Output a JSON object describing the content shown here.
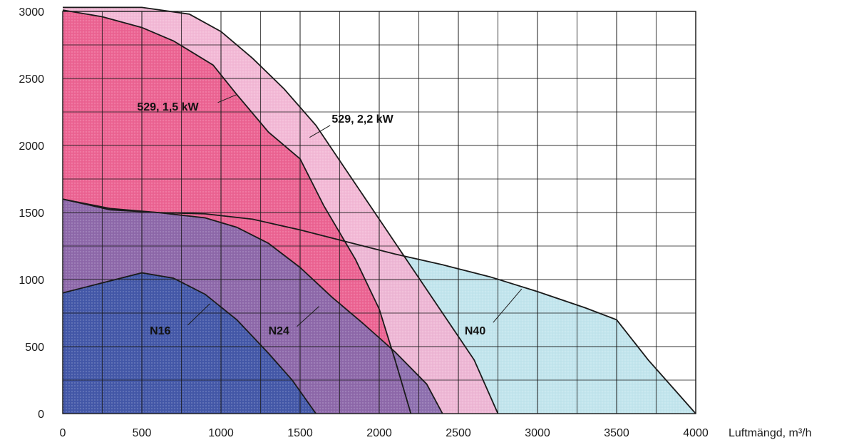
{
  "chart_data": {
    "type": "area",
    "xlabel": "Luftmängd, m³/h",
    "ylabel": "",
    "xlim": [
      0,
      4000
    ],
    "ylim": [
      0,
      3000
    ],
    "x_ticks": [
      "0",
      "500",
      "1000",
      "1500",
      "2000",
      "2500",
      "3000",
      "3500",
      "4000"
    ],
    "y_ticks": [
      "0",
      "500",
      "1000",
      "1500",
      "2000",
      "2500",
      "3000"
    ],
    "grid": true,
    "series": [
      {
        "name": "N40",
        "color": "#bde3ec",
        "points": [
          [
            0,
            1600
          ],
          [
            300,
            1520
          ],
          [
            600,
            1500
          ],
          [
            900,
            1490
          ],
          [
            1200,
            1450
          ],
          [
            1500,
            1370
          ],
          [
            1800,
            1280
          ],
          [
            2100,
            1190
          ],
          [
            2400,
            1110
          ],
          [
            2700,
            1020
          ],
          [
            3000,
            910
          ],
          [
            3300,
            790
          ],
          [
            3500,
            700
          ],
          [
            3700,
            400
          ],
          [
            3850,
            200
          ],
          [
            4000,
            0
          ]
        ]
      },
      {
        "name": "529, 2,2 kW",
        "color": "#f2b3d3",
        "points": [
          [
            0,
            3030
          ],
          [
            200,
            3030
          ],
          [
            500,
            3030
          ],
          [
            800,
            2980
          ],
          [
            1000,
            2850
          ],
          [
            1200,
            2650
          ],
          [
            1400,
            2420
          ],
          [
            1600,
            2150
          ],
          [
            1800,
            1800
          ],
          [
            2000,
            1450
          ],
          [
            2200,
            1100
          ],
          [
            2400,
            750
          ],
          [
            2600,
            400
          ],
          [
            2750,
            0
          ]
        ]
      },
      {
        "name": "529, 1,5 kW",
        "color": "#ec5c8d",
        "points": [
          [
            0,
            3010
          ],
          [
            250,
            2960
          ],
          [
            500,
            2880
          ],
          [
            700,
            2780
          ],
          [
            950,
            2600
          ],
          [
            1100,
            2380
          ],
          [
            1300,
            2100
          ],
          [
            1500,
            1900
          ],
          [
            1650,
            1550
          ],
          [
            1850,
            1150
          ],
          [
            2000,
            780
          ],
          [
            2100,
            400
          ],
          [
            2200,
            0
          ]
        ]
      },
      {
        "name": "N24",
        "color": "#8569ab",
        "points": [
          [
            0,
            1600
          ],
          [
            300,
            1530
          ],
          [
            600,
            1500
          ],
          [
            900,
            1460
          ],
          [
            1100,
            1390
          ],
          [
            1300,
            1270
          ],
          [
            1500,
            1090
          ],
          [
            1700,
            870
          ],
          [
            1900,
            670
          ],
          [
            2100,
            460
          ],
          [
            2300,
            220
          ],
          [
            2400,
            0
          ]
        ]
      },
      {
        "name": "N16",
        "color": "#3e57a8",
        "points": [
          [
            0,
            900
          ],
          [
            200,
            960
          ],
          [
            500,
            1050
          ],
          [
            700,
            1010
          ],
          [
            900,
            890
          ],
          [
            1100,
            700
          ],
          [
            1300,
            450
          ],
          [
            1450,
            250
          ],
          [
            1600,
            0
          ]
        ]
      }
    ]
  }
}
